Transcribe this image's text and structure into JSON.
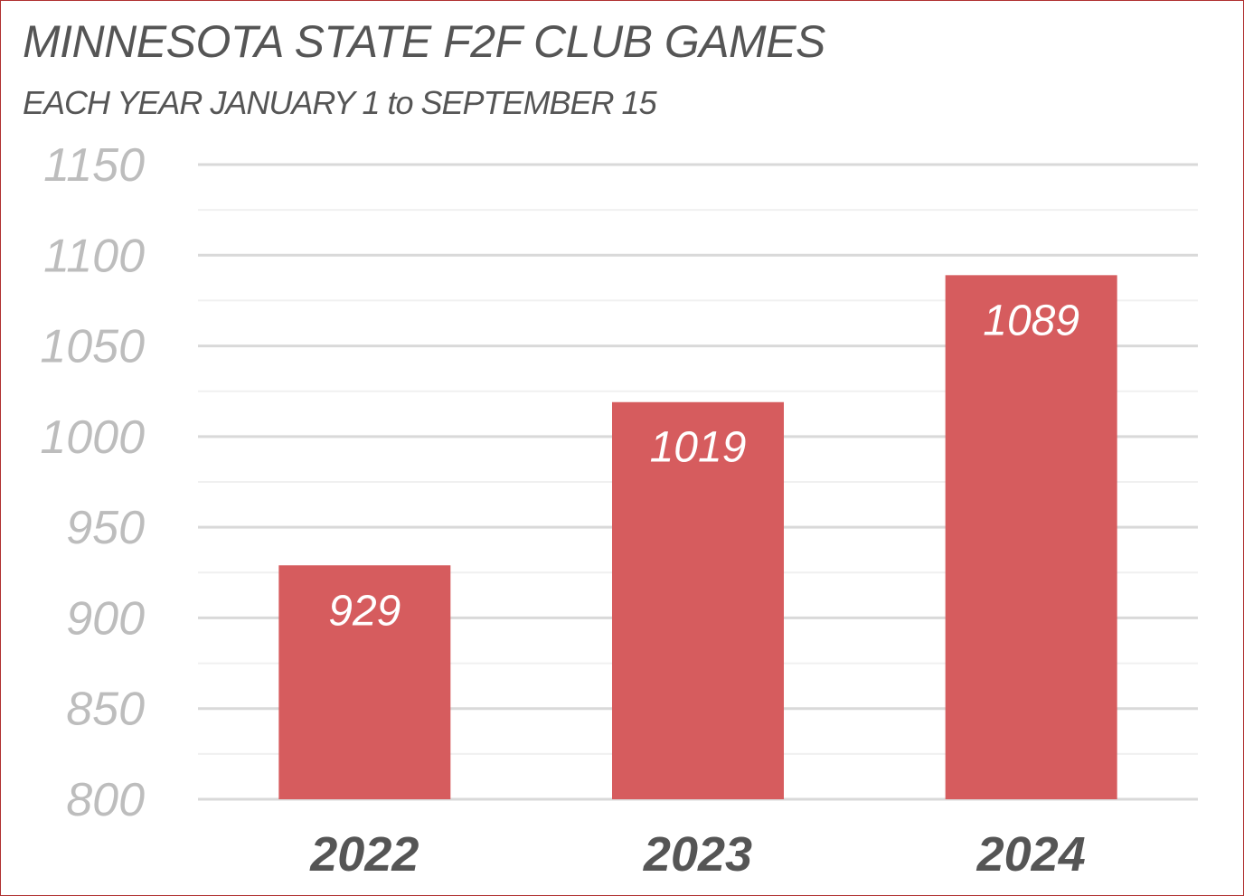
{
  "chart_data": {
    "type": "bar",
    "title": "MINNESOTA STATE F2F CLUB GAMES",
    "subtitle": "EACH YEAR JANUARY 1 to SEPTEMBER 15",
    "categories": [
      "2022",
      "2023",
      "2024"
    ],
    "values": [
      929,
      1019,
      1089
    ],
    "data_labels": [
      "929",
      "1019",
      "1089"
    ],
    "ylim": [
      800,
      1150
    ],
    "y_ticks": [
      800,
      850,
      900,
      950,
      1000,
      1050,
      1100,
      1150
    ],
    "y_tick_labels": [
      "800",
      "850",
      "900",
      "950",
      "1000",
      "1050",
      "1100",
      "1150"
    ],
    "minor_gridlines": true,
    "grid": true,
    "legend": "none",
    "xlabel": "",
    "ylabel": "",
    "bar_color": "#d65c5e",
    "major_grid_color": "#d9d9d9",
    "minor_grid_color": "#f0f0f0",
    "tick_label_color": "#bdbdbd",
    "category_label_color": "#555555"
  }
}
